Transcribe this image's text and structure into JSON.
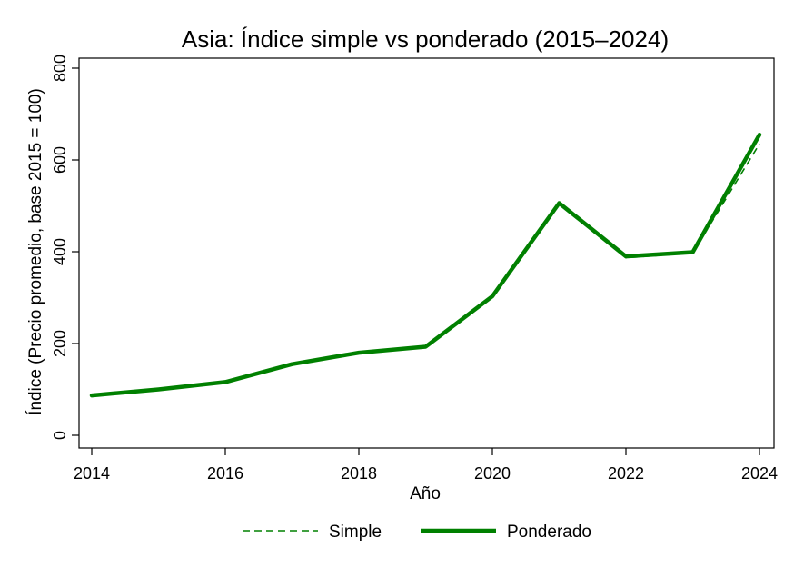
{
  "chart_data": {
    "type": "line",
    "title": "Asia: Índice simple vs ponderado (2015–2024)",
    "xlabel": "Año",
    "ylabel": "Índice (Precio promedio, base 2015 = 100)",
    "x": [
      2014,
      2015,
      2016,
      2017,
      2018,
      2019,
      2020,
      2021,
      2022,
      2023,
      2024
    ],
    "xticks": [
      2014,
      2016,
      2018,
      2020,
      2022,
      2024
    ],
    "yticks": [
      0,
      200,
      400,
      600,
      800
    ],
    "xlim": [
      2014,
      2024
    ],
    "ylim": [
      0,
      800
    ],
    "grid": false,
    "legend_position": "bottom",
    "series": [
      {
        "name": "Simple",
        "style": "dashed",
        "color": "#008000",
        "values": [
          87,
          100,
          116,
          155,
          180,
          193,
          303,
          503,
          387,
          397,
          635
        ]
      },
      {
        "name": "Ponderado",
        "style": "solid",
        "color": "#008000",
        "values": [
          87,
          100,
          116,
          155,
          180,
          193,
          303,
          506,
          390,
          399,
          655
        ]
      }
    ]
  }
}
